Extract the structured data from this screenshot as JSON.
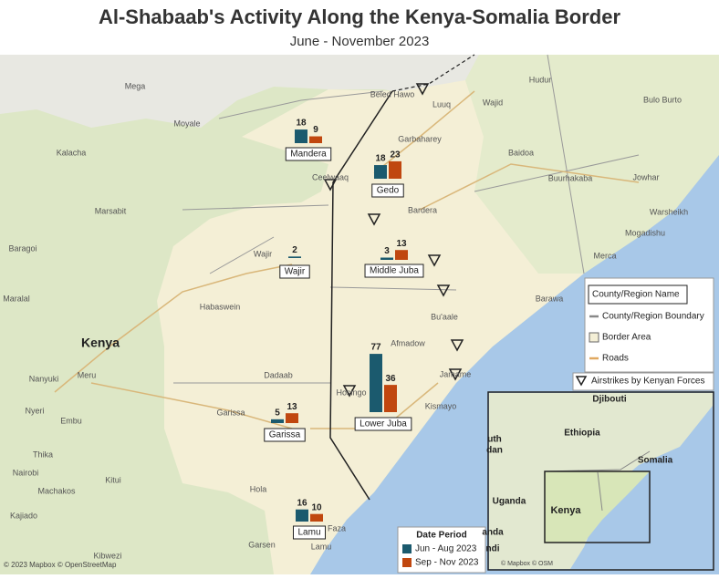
{
  "title": "Al-Shabaab's Activity Along the Kenya-Somalia Border",
  "subtitle": "June - November 2023",
  "chart_data": {
    "type": "bar",
    "categories": [
      "Mandera",
      "Gedo",
      "Wajir",
      "Middle Juba",
      "Garissa",
      "Lower Juba",
      "Lamu"
    ],
    "legend_title": "Date Period",
    "series": [
      {
        "name": "Jun - Aug 2023",
        "color": "#1b5a6e",
        "values": [
          18,
          18,
          2,
          3,
          5,
          77,
          16
        ]
      },
      {
        "name": "Sep - Nov 2023",
        "color": "#c0470f",
        "values": [
          9,
          23,
          null,
          13,
          13,
          36,
          10
        ]
      }
    ]
  },
  "map_labels": [
    "Mega",
    "Moyale",
    "Beled Hawo",
    "Luuq",
    "Wajid",
    "Hudur",
    "Bulo Burto",
    "Kalacha",
    "Garbaharey",
    "Baidoa",
    "Buurhakaba",
    "Jowhar",
    "Ceelwaaq",
    "Marsabit",
    "Bardera",
    "Warsheikh",
    "Mogadishu",
    "Baragoi",
    "Wajir",
    "Merca",
    "Habaswein",
    "Maralal",
    "Barawa",
    "Kenya",
    "Afmadow",
    "Bu'aale",
    "Nanyuki",
    "Meru",
    "Dadaab",
    "Jamame",
    "Hosingo",
    "Nyeri",
    "Embu",
    "Kismayo",
    "Garissa",
    "Thika",
    "Nairobi",
    "Kitui",
    "Machakos",
    "Hola",
    "Kajiado",
    "Faza",
    "Garsen",
    "Lamu",
    "Kibwezi"
  ],
  "legend": {
    "name_box": "County/Region Name",
    "items": [
      "County/Region Boundary",
      "Border Area",
      "Roads",
      "Airstrikes by Kenyan Forces"
    ]
  },
  "inset_labels": [
    "Djibouti",
    "Ethiopia",
    "Somalia",
    "Kenya",
    "Uganda",
    "uth",
    "dan",
    "anda",
    "ndi"
  ],
  "attribution": "© 2023 Mapbox © OpenStreetMap",
  "inset_attribution": "© Mapbox © OSM"
}
